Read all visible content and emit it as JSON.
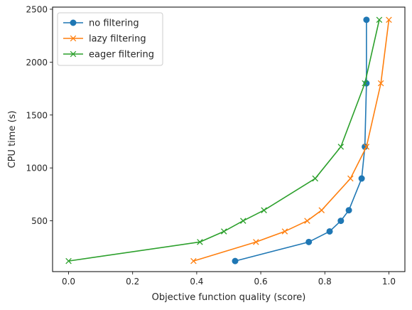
{
  "chart_data": {
    "type": "line",
    "xlabel": "Objective function quality (score)",
    "ylabel": "CPU time (s)",
    "xlim": [
      -0.05,
      1.05
    ],
    "ylim": [
      20,
      2520
    ],
    "xticks": [
      0.0,
      0.2,
      0.4,
      0.6,
      0.8,
      1.0
    ],
    "xtick_labels": [
      "0.0",
      "0.2",
      "0.4",
      "0.6",
      "0.8",
      "1.0"
    ],
    "yticks": [
      500,
      1000,
      1500,
      2000,
      2500
    ],
    "ytick_labels": [
      "500",
      "1000",
      "1500",
      "2000",
      "2500"
    ],
    "grid": false,
    "legend_position": "top-left",
    "series": [
      {
        "name": "no filtering",
        "color": "#1f77b4",
        "marker": "circle",
        "points": [
          [
            0.52,
            120
          ],
          [
            0.75,
            300
          ],
          [
            0.815,
            400
          ],
          [
            0.85,
            500
          ],
          [
            0.875,
            600
          ],
          [
            0.915,
            900
          ],
          [
            0.925,
            1200
          ],
          [
            0.93,
            1800
          ],
          [
            0.93,
            2400
          ]
        ]
      },
      {
        "name": "lazy filtering",
        "color": "#ff7f0e",
        "marker": "x",
        "points": [
          [
            0.39,
            120
          ],
          [
            0.585,
            300
          ],
          [
            0.675,
            400
          ],
          [
            0.745,
            500
          ],
          [
            0.79,
            600
          ],
          [
            0.88,
            900
          ],
          [
            0.93,
            1200
          ],
          [
            0.975,
            1800
          ],
          [
            1.0,
            2400
          ]
        ]
      },
      {
        "name": "eager filtering",
        "color": "#2ca02c",
        "marker": "x",
        "points": [
          [
            0.0,
            120
          ],
          [
            0.41,
            300
          ],
          [
            0.485,
            400
          ],
          [
            0.545,
            500
          ],
          [
            0.61,
            600
          ],
          [
            0.77,
            900
          ],
          [
            0.85,
            1200
          ],
          [
            0.925,
            1800
          ],
          [
            0.97,
            2400
          ]
        ]
      }
    ]
  }
}
